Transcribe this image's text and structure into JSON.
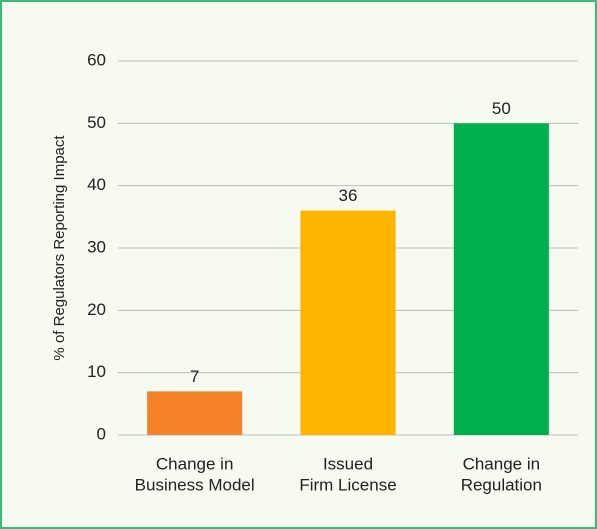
{
  "chart_data": {
    "type": "bar",
    "ylabel": "% of Regulators Reporting Impact",
    "categories": [
      [
        "Change in",
        "Business Model"
      ],
      [
        "Issued",
        "Firm License"
      ],
      [
        "Change in",
        "Regulation"
      ]
    ],
    "values": [
      7,
      36,
      50
    ],
    "colors": [
      "#f5822a",
      "#ffb400",
      "#00b04f"
    ],
    "ylim": [
      0,
      60
    ],
    "yticks": [
      0,
      10,
      20,
      30,
      40,
      50,
      60
    ],
    "grid": true
  }
}
